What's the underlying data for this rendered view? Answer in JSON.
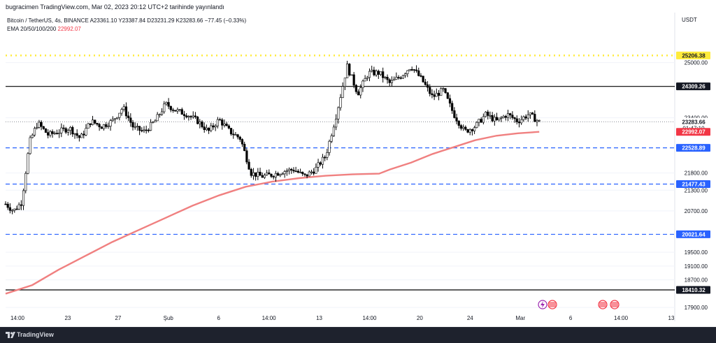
{
  "header": {
    "published_by": "bugracimen TradingView.com, Mar 02, 2023 20:12 UTC+2 tarihinde yayınlandı"
  },
  "legend": {
    "symbol_line": "Bitcoin / TetherUS, 4s, BINANCE",
    "ohlc": "A23361.10 Y23387.84 D23231.29 K23283.66 −77.45 (−0.33%)",
    "ema_label": "EMA 20/50/100/200",
    "ema_value": "22992.07"
  },
  "axis": {
    "currency": "USDT"
  },
  "footer": {
    "brand": "TradingView"
  },
  "colors": {
    "up": "#ffffff",
    "down": "#000000",
    "wick": "#000000",
    "ema": "#f08080",
    "dashed": "#2962ff",
    "dotted": "#ffeb3b",
    "solid_line": "#000000",
    "price_tag": "#131722",
    "ema_tag": "#f23645",
    "blue_tag": "#2962ff"
  },
  "chart_data": {
    "type": "candlestick",
    "title": "",
    "x_range": [
      "2023-01-19 14:00",
      "2023-03-13"
    ],
    "ylim": [
      17600,
      25700
    ],
    "y_ticks": [
      17900,
      18700,
      19100,
      19500,
      20700,
      21300,
      21800,
      23400,
      25000
    ],
    "x_tick_labels": [
      "14:00",
      "23",
      "27",
      "Şub",
      "6",
      "14:00",
      "13",
      "14:00",
      "20",
      "24",
      "Mar",
      "6",
      "14:00",
      "13"
    ],
    "horizontal_lines": [
      {
        "kind": "dotted",
        "color": "#ffeb3b",
        "value": 25206.38,
        "label": "25206.38"
      },
      {
        "kind": "solid",
        "color": "#000000",
        "value": 24309.26,
        "label": "24309.26"
      },
      {
        "kind": "dashed",
        "color": "#2962ff",
        "value": 22528.89,
        "label": "22528.89"
      },
      {
        "kind": "dashed",
        "color": "#2962ff",
        "value": 21477.43,
        "label": "21477.43"
      },
      {
        "kind": "dashed",
        "color": "#2962ff",
        "value": 20021.64,
        "label": "20021.64"
      },
      {
        "kind": "solid",
        "color": "#000000",
        "value": 18410.32,
        "label": "18410.32"
      }
    ],
    "last_price": {
      "value": 23283.66,
      "label": "23283.66",
      "countdown": "01:47:10"
    },
    "ema_200": {
      "name": "EMA 200",
      "label": "22992.07",
      "points": [
        [
          0,
          18300
        ],
        [
          0.05,
          18550
        ],
        [
          0.1,
          19000
        ],
        [
          0.15,
          19400
        ],
        [
          0.2,
          19800
        ],
        [
          0.25,
          20150
        ],
        [
          0.3,
          20500
        ],
        [
          0.35,
          20850
        ],
        [
          0.4,
          21150
        ],
        [
          0.45,
          21400
        ],
        [
          0.5,
          21550
        ],
        [
          0.55,
          21650
        ],
        [
          0.6,
          21720
        ],
        [
          0.65,
          21760
        ],
        [
          0.7,
          21780
        ],
        [
          0.72,
          21900
        ],
        [
          0.76,
          22100
        ],
        [
          0.8,
          22350
        ],
        [
          0.84,
          22550
        ],
        [
          0.88,
          22750
        ],
        [
          0.92,
          22880
        ],
        [
          0.96,
          22950
        ],
        [
          1.0,
          22992
        ]
      ]
    },
    "closes_outline": [
      [
        0,
        20900
      ],
      [
        0.015,
        20700
      ],
      [
        0.03,
        20950
      ],
      [
        0.045,
        22700
      ],
      [
        0.06,
        23250
      ],
      [
        0.08,
        22900
      ],
      [
        0.1,
        23000
      ],
      [
        0.12,
        23100
      ],
      [
        0.14,
        22800
      ],
      [
        0.16,
        23300
      ],
      [
        0.18,
        23150
      ],
      [
        0.2,
        23300
      ],
      [
        0.22,
        23700
      ],
      [
        0.24,
        23100
      ],
      [
        0.26,
        23000
      ],
      [
        0.28,
        23300
      ],
      [
        0.3,
        23800
      ],
      [
        0.32,
        23600
      ],
      [
        0.34,
        23500
      ],
      [
        0.36,
        23300
      ],
      [
        0.38,
        23000
      ],
      [
        0.4,
        23350
      ],
      [
        0.42,
        23000
      ],
      [
        0.44,
        22800
      ],
      [
        0.46,
        21800
      ],
      [
        0.48,
        21700
      ],
      [
        0.5,
        21750
      ],
      [
        0.52,
        21850
      ],
      [
        0.54,
        21900
      ],
      [
        0.56,
        21700
      ],
      [
        0.58,
        21900
      ],
      [
        0.6,
        22300
      ],
      [
        0.62,
        23500
      ],
      [
        0.64,
        24900
      ],
      [
        0.66,
        24100
      ],
      [
        0.68,
        24700
      ],
      [
        0.7,
        24700
      ],
      [
        0.72,
        24400
      ],
      [
        0.74,
        24600
      ],
      [
        0.76,
        24900
      ],
      [
        0.78,
        24500
      ],
      [
        0.8,
        24000
      ],
      [
        0.82,
        24200
      ],
      [
        0.84,
        23500
      ],
      [
        0.86,
        23000
      ],
      [
        0.88,
        23150
      ],
      [
        0.9,
        23500
      ],
      [
        0.92,
        23300
      ],
      [
        0.94,
        23500
      ],
      [
        0.96,
        23300
      ],
      [
        0.98,
        23500
      ],
      [
        1.0,
        23283
      ]
    ]
  }
}
